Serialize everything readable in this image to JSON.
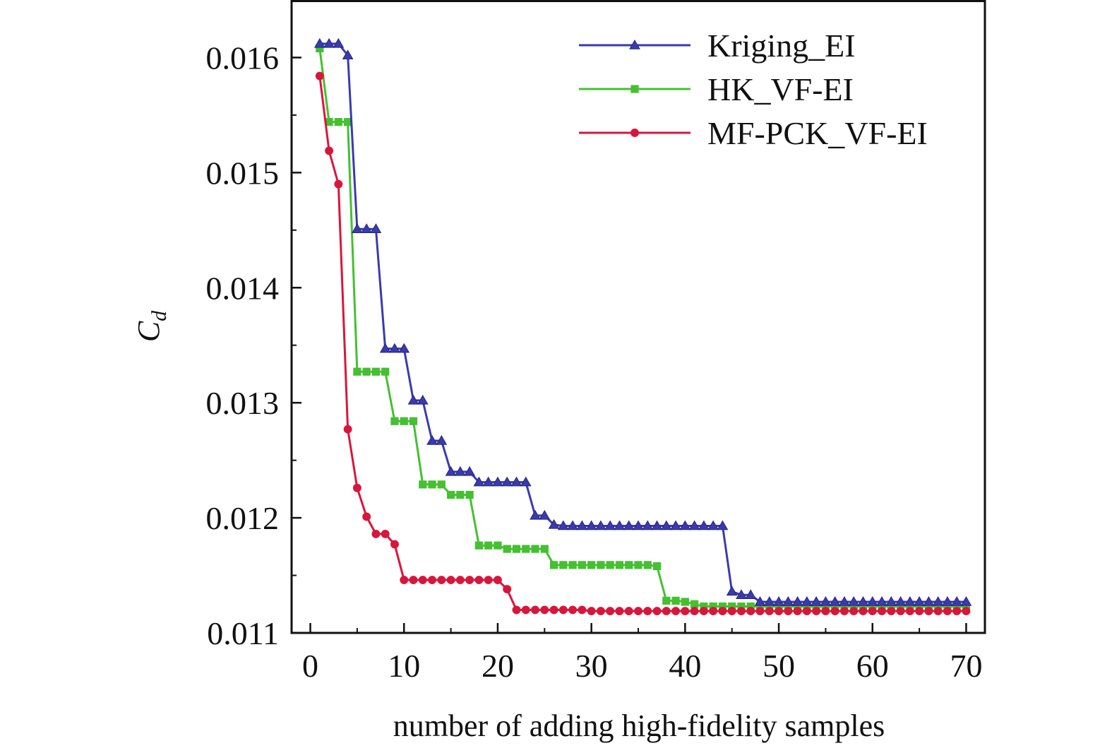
{
  "chart_data": {
    "type": "line",
    "xlabel": "number of adding high-fidelity samples",
    "ylabel": "C",
    "ylabel_sub": "d",
    "xlim": [
      -2,
      72
    ],
    "ylim": [
      0.011,
      0.0165
    ],
    "xticks": [
      0,
      10,
      20,
      30,
      40,
      50,
      60,
      70
    ],
    "yticks": [
      0.011,
      0.012,
      0.013,
      0.014,
      0.015,
      0.016
    ],
    "xtick_labels": [
      "0",
      "10",
      "20",
      "30",
      "40",
      "50",
      "60",
      "70"
    ],
    "ytick_labels": [
      "0.011",
      "0.012",
      "0.013",
      "0.014",
      "0.015",
      "0.016"
    ],
    "grid": false,
    "legend_position": "top-right",
    "series": [
      {
        "name": "Kriging_EI",
        "color": "#3a3ab0",
        "marker": "triangle",
        "x": [
          1,
          2,
          3,
          4,
          5,
          6,
          7,
          8,
          9,
          10,
          11,
          12,
          13,
          14,
          15,
          16,
          17,
          18,
          19,
          20,
          21,
          22,
          23,
          24,
          25,
          26,
          27,
          28,
          29,
          30,
          31,
          32,
          33,
          34,
          35,
          36,
          37,
          38,
          39,
          40,
          41,
          42,
          43,
          44,
          45,
          46,
          47,
          48,
          49,
          50,
          51,
          52,
          53,
          54,
          55,
          56,
          57,
          58,
          59,
          60,
          61,
          62,
          63,
          64,
          65,
          66,
          67,
          68,
          69,
          70
        ],
        "y": [
          0.01612,
          0.01612,
          0.01612,
          0.01602,
          0.01451,
          0.01451,
          0.01451,
          0.01347,
          0.01347,
          0.01347,
          0.01302,
          0.01302,
          0.01267,
          0.01267,
          0.0124,
          0.0124,
          0.0124,
          0.01231,
          0.01231,
          0.01231,
          0.01231,
          0.01231,
          0.01231,
          0.01202,
          0.01202,
          0.01194,
          0.01193,
          0.01193,
          0.01193,
          0.01193,
          0.01193,
          0.01193,
          0.01193,
          0.01193,
          0.01193,
          0.01193,
          0.01193,
          0.01193,
          0.01193,
          0.01193,
          0.01193,
          0.01193,
          0.01193,
          0.01193,
          0.01136,
          0.01133,
          0.01133,
          0.01127,
          0.01127,
          0.01127,
          0.01127,
          0.01127,
          0.01127,
          0.01127,
          0.01127,
          0.01127,
          0.01127,
          0.01127,
          0.01127,
          0.01127,
          0.01127,
          0.01127,
          0.01127,
          0.01127,
          0.01127,
          0.01127,
          0.01127,
          0.01127,
          0.01127,
          0.01127
        ]
      },
      {
        "name": "HK_VF-EI",
        "color": "#44c030",
        "marker": "square",
        "x": [
          1,
          2,
          3,
          4,
          5,
          6,
          7,
          8,
          9,
          10,
          11,
          12,
          13,
          14,
          15,
          16,
          17,
          18,
          19,
          20,
          21,
          22,
          23,
          24,
          25,
          26,
          27,
          28,
          29,
          30,
          31,
          32,
          33,
          34,
          35,
          36,
          37,
          38,
          39,
          40,
          41,
          42,
          43,
          44,
          45,
          46,
          47,
          48,
          49,
          50,
          51,
          52,
          53,
          54,
          55,
          56,
          57,
          58,
          59,
          60,
          61,
          62,
          63,
          64,
          65,
          66,
          67,
          68,
          69,
          70
        ],
        "y": [
          0.01608,
          0.01544,
          0.01544,
          0.01544,
          0.01327,
          0.01327,
          0.01327,
          0.01327,
          0.01284,
          0.01284,
          0.01284,
          0.01229,
          0.01229,
          0.01229,
          0.0122,
          0.0122,
          0.0122,
          0.01176,
          0.01176,
          0.01176,
          0.01173,
          0.01173,
          0.01173,
          0.01173,
          0.01173,
          0.01159,
          0.01159,
          0.01159,
          0.01159,
          0.01159,
          0.01159,
          0.01159,
          0.01159,
          0.01159,
          0.01159,
          0.01159,
          0.01158,
          0.01128,
          0.01128,
          0.01127,
          0.01125,
          0.01123,
          0.01123,
          0.01123,
          0.01123,
          0.01123,
          0.01123,
          0.01123,
          0.01123,
          0.01123,
          0.01123,
          0.01123,
          0.01123,
          0.01123,
          0.01123,
          0.01123,
          0.01123,
          0.01123,
          0.01123,
          0.01123,
          0.01123,
          0.01123,
          0.01123,
          0.01123,
          0.01123,
          0.01123,
          0.01123,
          0.01123,
          0.01123,
          0.01123
        ]
      },
      {
        "name": "MF-PCK_VF-EI",
        "color": "#d8163c",
        "marker": "circle",
        "x": [
          1,
          2,
          3,
          4,
          5,
          6,
          7,
          8,
          9,
          10,
          11,
          12,
          13,
          14,
          15,
          16,
          17,
          18,
          19,
          20,
          21,
          22,
          23,
          24,
          25,
          26,
          27,
          28,
          29,
          30,
          31,
          32,
          33,
          34,
          35,
          36,
          37,
          38,
          39,
          40,
          41,
          42,
          43,
          44,
          45,
          46,
          47,
          48,
          49,
          50,
          51,
          52,
          53,
          54,
          55,
          56,
          57,
          58,
          59,
          60,
          61,
          62,
          63,
          64,
          65,
          66,
          67,
          68,
          69,
          70
        ],
        "y": [
          0.01584,
          0.01519,
          0.0149,
          0.01277,
          0.01226,
          0.01201,
          0.01186,
          0.01186,
          0.01177,
          0.01146,
          0.01146,
          0.01146,
          0.01146,
          0.01146,
          0.01146,
          0.01146,
          0.01146,
          0.01146,
          0.01146,
          0.01146,
          0.01138,
          0.0112,
          0.0112,
          0.0112,
          0.0112,
          0.0112,
          0.0112,
          0.0112,
          0.0112,
          0.01119,
          0.01119,
          0.01119,
          0.01119,
          0.01119,
          0.01119,
          0.01119,
          0.01119,
          0.01119,
          0.01119,
          0.01119,
          0.01119,
          0.01119,
          0.01119,
          0.01119,
          0.01119,
          0.01119,
          0.01119,
          0.01119,
          0.01119,
          0.01119,
          0.01119,
          0.01119,
          0.01119,
          0.01119,
          0.01119,
          0.01119,
          0.01119,
          0.01119,
          0.01119,
          0.01119,
          0.01119,
          0.01119,
          0.01119,
          0.01119,
          0.01119,
          0.01119,
          0.01119,
          0.01119,
          0.01119,
          0.01119
        ]
      }
    ]
  }
}
